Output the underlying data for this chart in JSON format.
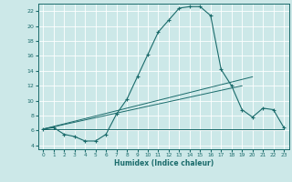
{
  "xlabel": "Humidex (Indice chaleur)",
  "xlim": [
    -0.5,
    23.5
  ],
  "ylim": [
    3.5,
    23.0
  ],
  "yticks": [
    4,
    6,
    8,
    10,
    12,
    14,
    16,
    18,
    20,
    22
  ],
  "xticks": [
    0,
    1,
    2,
    3,
    4,
    5,
    6,
    7,
    8,
    9,
    10,
    11,
    12,
    13,
    14,
    15,
    16,
    17,
    18,
    19,
    20,
    21,
    22,
    23
  ],
  "bg_color": "#cce8e8",
  "line_color": "#1a6b6b",
  "grid_color": "#b8d8d8",
  "main_line_x": [
    0,
    1,
    2,
    3,
    4,
    5,
    6,
    7,
    8,
    9,
    10,
    11,
    12,
    13,
    14,
    15,
    16,
    17,
    18,
    19,
    20,
    21,
    22,
    23
  ],
  "main_line_y": [
    6.2,
    6.4,
    5.5,
    5.2,
    4.6,
    4.6,
    5.5,
    8.2,
    10.2,
    13.2,
    16.2,
    19.2,
    20.8,
    22.4,
    22.6,
    22.6,
    21.4,
    14.2,
    12.0,
    8.8,
    7.8,
    9.0,
    8.8,
    6.4
  ],
  "line2_x": [
    0,
    23
  ],
  "line2_y": [
    6.2,
    6.2
  ],
  "line3_x": [
    0,
    19
  ],
  "line3_y": [
    6.2,
    12.0
  ],
  "line4_x": [
    0,
    20
  ],
  "line4_y": [
    6.2,
    13.2
  ]
}
